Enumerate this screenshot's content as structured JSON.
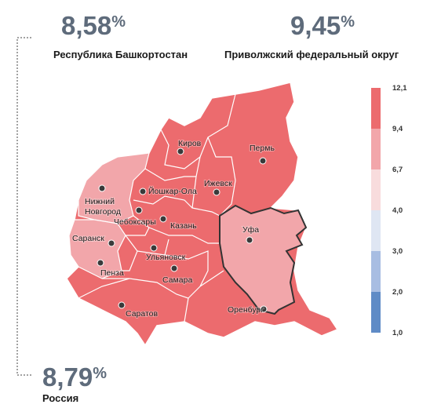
{
  "stats": [
    {
      "value": "8,58",
      "unit": "%",
      "label": "Республика Башкортостан"
    },
    {
      "value": "9,45",
      "unit": "%",
      "label": "Приволжский федеральный округ"
    },
    {
      "value": "8,79",
      "unit": "%",
      "label": "Россия"
    }
  ],
  "legend": {
    "labels": [
      "12,1",
      "9,4",
      "6,7",
      "4,0",
      "3,0",
      "2,0",
      "1,0"
    ],
    "colors": [
      "#ec6b6e",
      "#f2a6aa",
      "#f8dcdd",
      "#dfe6f3",
      "#a8bde2",
      "#5f8bc6"
    ]
  },
  "cities": [
    {
      "lines": [
        "Киров"
      ]
    },
    {
      "lines": [
        "Пермь"
      ]
    },
    {
      "lines": [
        "Ижевск"
      ]
    },
    {
      "lines": [
        "Йошкар-Ола"
      ]
    },
    {
      "lines": [
        "Нижний",
        "Новгород"
      ]
    },
    {
      "lines": [
        "Чебоксары"
      ]
    },
    {
      "lines": [
        "Казань"
      ]
    },
    {
      "lines": [
        "Уфа"
      ]
    },
    {
      "lines": [
        "Саранск"
      ]
    },
    {
      "lines": [
        "Ульяновск"
      ]
    },
    {
      "lines": [
        "Пенза"
      ]
    },
    {
      "lines": [
        "Самара"
      ]
    },
    {
      "lines": [
        "Саратов"
      ]
    },
    {
      "lines": [
        "Оренбург"
      ]
    }
  ]
}
